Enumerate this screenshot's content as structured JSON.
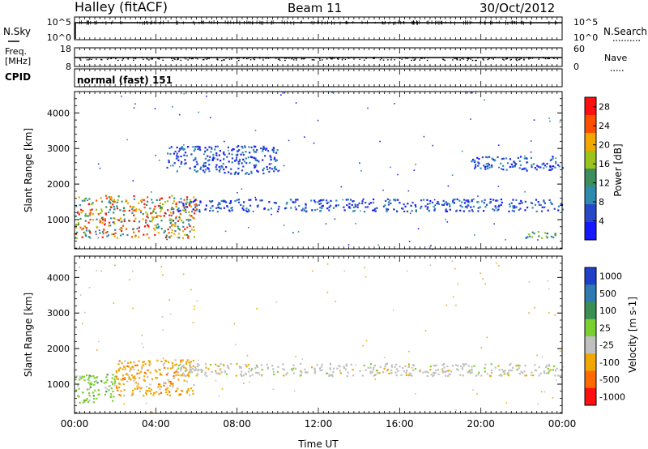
{
  "header": {
    "title": "Halley (fitACF)",
    "beam": "Beam 11",
    "date": "30/Oct/2012"
  },
  "noise_panel": {
    "left_label": "N.Sky",
    "right_label": "N.Search",
    "left_ticks": [
      "10^5",
      "10^0"
    ],
    "right_ticks": [
      "10^5",
      "10^0"
    ]
  },
  "freq_panel": {
    "left_label_1": "Freq.",
    "left_label_2": "[MHz]",
    "right_label": "Nave",
    "left_ticks": [
      "18",
      "8"
    ],
    "right_ticks": [
      "60",
      "0"
    ]
  },
  "cpid_panel": {
    "label": "CPID",
    "text": "normal (fast) 151"
  },
  "chart_data": [
    {
      "type": "heatmap",
      "name": "power",
      "xlabel": "Time UT",
      "ylabel": "Slant Range [km]",
      "x_ticks": [
        "00:00",
        "04:00",
        "08:00",
        "12:00",
        "16:00",
        "20:00",
        "00:00"
      ],
      "xlim_hours": [
        0,
        24
      ],
      "y_ticks": [
        1000,
        2000,
        3000,
        4000
      ],
      "ylim": [
        180,
        4600
      ],
      "colorbar": {
        "label": "Power [dB]",
        "ticks": [
          4,
          8,
          12,
          16,
          20,
          24,
          28
        ],
        "range": [
          0,
          30
        ],
        "colors": [
          "#1818ff",
          "#2848c8",
          "#2e8bae",
          "#3d8d5d",
          "#9ac41c",
          "#f0a800",
          "#ff5000",
          "#ff1010"
        ]
      },
      "features": [
        {
          "t_start": 0.0,
          "t_end": 6.0,
          "range_low": 500,
          "range_high": 1700,
          "level": "strong"
        },
        {
          "t_start": 5.0,
          "t_end": 24.0,
          "range_low": 1250,
          "range_high": 1600,
          "level": "weak"
        },
        {
          "t_start": 4.5,
          "t_end": 10.0,
          "range_low": 2300,
          "range_high": 3100,
          "level": "weak"
        },
        {
          "t_start": 19.5,
          "t_end": 24.0,
          "range_low": 2400,
          "range_high": 2800,
          "level": "weak"
        },
        {
          "t_start": 22.0,
          "t_end": 23.7,
          "range_low": 500,
          "range_high": 700,
          "level": "moderate"
        }
      ]
    },
    {
      "type": "heatmap",
      "name": "velocity",
      "xlabel": "Time UT",
      "ylabel": "Slant Range [km]",
      "x_ticks": [
        "00:00",
        "04:00",
        "08:00",
        "12:00",
        "16:00",
        "20:00",
        "00:00"
      ],
      "xlim_hours": [
        0,
        24
      ],
      "y_ticks": [
        1000,
        2000,
        3000,
        4000
      ],
      "ylim": [
        180,
        4600
      ],
      "colorbar": {
        "label": "Velocity [m s-1]",
        "ticks": [
          1000,
          500,
          100,
          25,
          -25,
          -100,
          -500,
          -1000
        ],
        "colors": [
          "#2040c8",
          "#2f7ab0",
          "#3a8f55",
          "#7ad030",
          "#c0c0c0",
          "#f0a800",
          "#ff6a00",
          "#ff1010"
        ]
      },
      "features": [
        {
          "t_start": 2.0,
          "t_end": 6.0,
          "range_low": 700,
          "range_high": 1700,
          "velocity": -100
        },
        {
          "t_start": 5.0,
          "t_end": 24.0,
          "range_low": 1250,
          "range_high": 1600,
          "velocity": 0
        },
        {
          "t_start": 0.0,
          "t_end": 2.0,
          "range_low": 500,
          "range_high": 1300,
          "velocity": 100
        }
      ]
    }
  ]
}
